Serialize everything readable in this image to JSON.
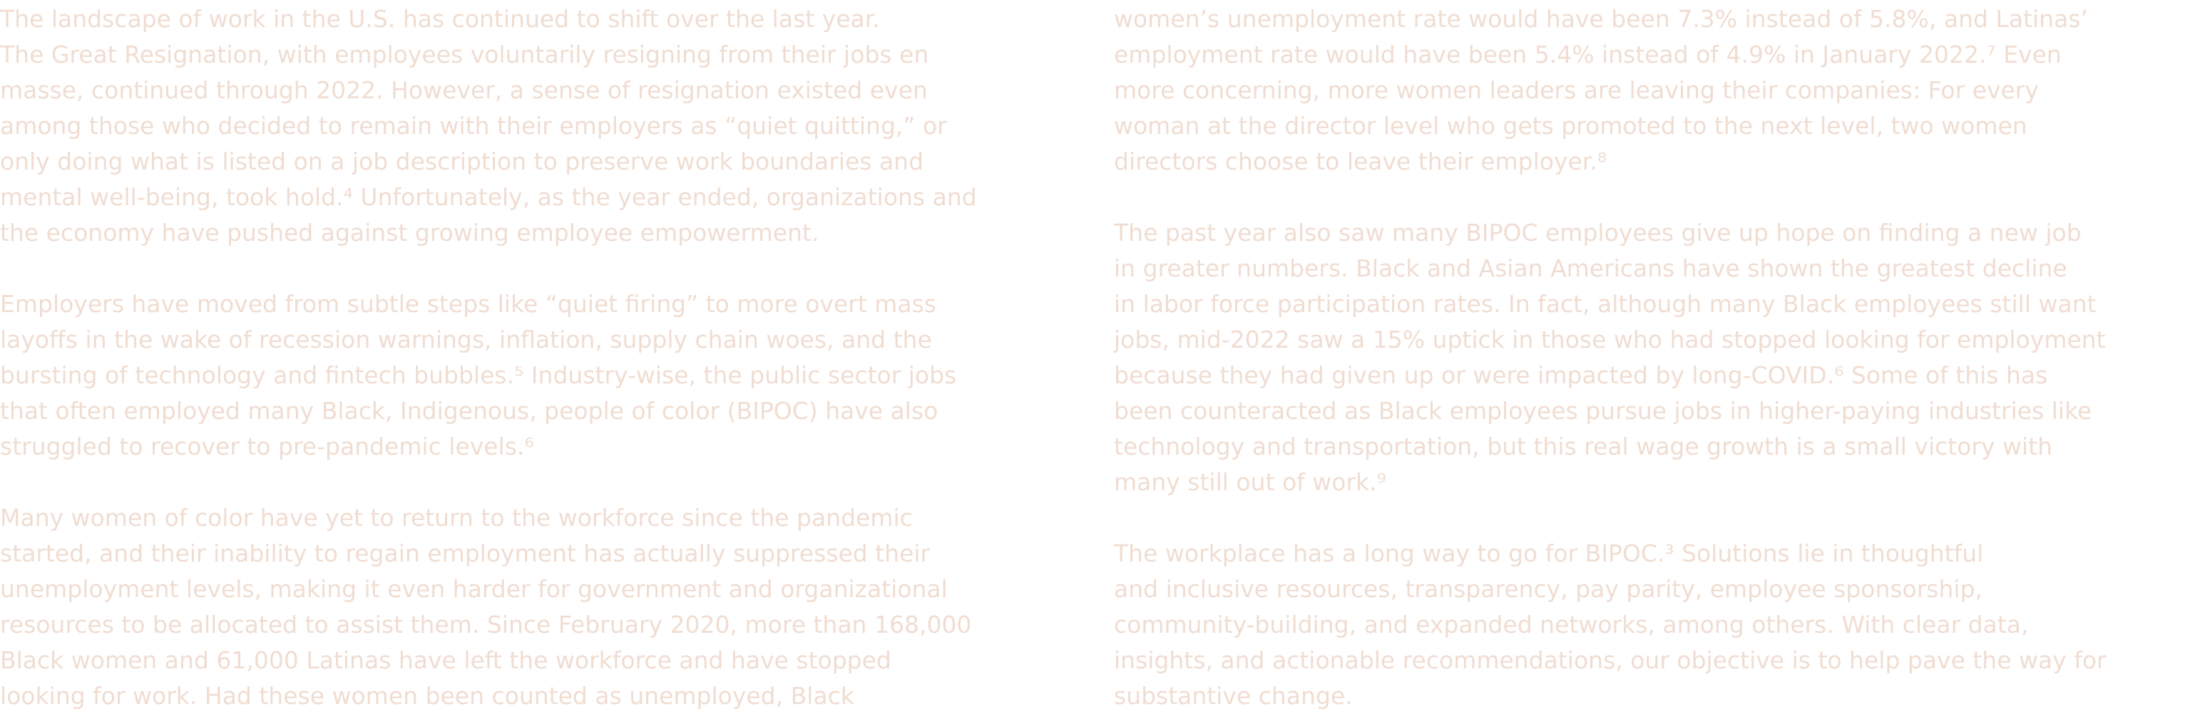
{
  "colors": {
    "text": "#f0ddd2",
    "background": "#ffffff"
  },
  "left_column": {
    "paragraphs": [
      {
        "lines": [
          "The landscape of work in the U.S. has continued to shift over the last year.",
          "The Great Resignation, with employees voluntarily resigning from their jobs en",
          "masse, continued through 2022. However, a sense of resignation existed even",
          "among those who decided to remain with their employers as “quiet quitting,” or",
          "only doing what is listed on a job description to preserve work boundaries and",
          "mental well-being, took hold.⁴ Unfortunately, as the year ended, organizations and",
          "the economy have pushed against growing employee empowerment."
        ]
      },
      {
        "lines": [
          "Employers have moved from subtle steps like “quiet firing” to more overt mass",
          "layoffs in the wake of recession warnings, inflation, supply chain woes, and the",
          "bursting of technology and fintech bubbles.⁵ Industry-wise, the public sector jobs",
          "that often employed many Black, Indigenous, people of color (BIPOC) have also",
          "struggled to recover to pre-pandemic levels.⁶"
        ]
      },
      {
        "lines": [
          "Many women of color have yet to return to the workforce since the pandemic",
          "started, and their inability to regain employment has actually suppressed their",
          "unemployment levels, making it even harder for government and organizational",
          "resources to be allocated to assist them. Since February 2020, more than 168,000",
          "Black women and 61,000 Latinas have left the workforce and have stopped",
          "looking for work. Had these women been counted as unemployed, Black"
        ]
      }
    ]
  },
  "right_column": {
    "paragraphs": [
      {
        "lines": [
          "women’s unemployment rate would have been 7.3% instead of 5.8%, and Latinas’",
          "employment rate would have been 5.4% instead of 4.9% in January 2022.⁷  Even",
          "more concerning, more women leaders are leaving their companies: For every",
          "woman at the director level who gets promoted to the next level, two women",
          "directors choose to leave their employer.⁸"
        ]
      },
      {
        "lines": [
          "The past year also saw many BIPOC employees give up hope on finding a new job",
          "in greater numbers. Black and Asian Americans have shown the greatest decline",
          "in labor force participation rates. In fact, although many Black employees still want",
          "jobs, mid-2022 saw a 15% uptick in those who had stopped looking for employment",
          "because they had given up or were impacted by long-COVID.⁶ Some of this has",
          "been counteracted as Black employees pursue jobs in higher-paying industries like",
          "technology and transportation, but this real wage growth is a small victory with",
          "many still out of work.⁹"
        ]
      },
      {
        "lines": [
          "The workplace has a long way to go for BIPOC.³ Solutions lie in thoughtful",
          "and inclusive resources, transparency, pay parity, employee sponsorship,",
          "community-building, and expanded networks, among others. With clear data,",
          "insights, and actionable recommendations, our objective is to help pave the way for",
          "substantive change."
        ]
      }
    ]
  }
}
